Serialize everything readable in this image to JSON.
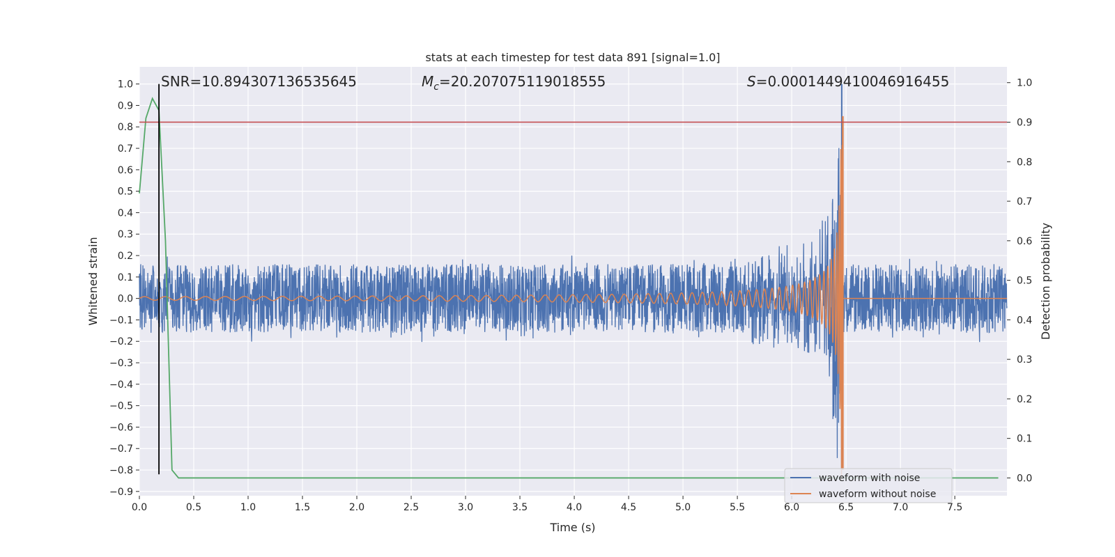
{
  "chart_data": {
    "type": "line",
    "title": "stats at each timestep for test data 891 [signal=1.0]",
    "xlabel": "Time (s)",
    "ylabel": "Whitened strain",
    "y2label": "Detection probability",
    "xlim": [
      0,
      7.98
    ],
    "ylim": [
      -0.92,
      1.08
    ],
    "y2lim": [
      -0.045,
      1.04
    ],
    "x_ticks": [
      0.0,
      0.5,
      1.0,
      1.5,
      2.0,
      2.5,
      3.0,
      3.5,
      4.0,
      4.5,
      5.0,
      5.5,
      6.0,
      6.5,
      7.0,
      7.5
    ],
    "x_tick_labels": [
      "0.0",
      "0.5",
      "1.0",
      "1.5",
      "2.0",
      "2.5",
      "3.0",
      "3.5",
      "4.0",
      "4.5",
      "5.0",
      "5.5",
      "6.0",
      "6.5",
      "7.0",
      "7.5"
    ],
    "y_ticks": [
      1.0,
      0.9,
      0.8,
      0.7,
      0.6,
      0.5,
      0.4,
      0.3,
      0.2,
      0.1,
      0.0,
      -0.1,
      -0.2,
      -0.3,
      -0.4,
      -0.5,
      -0.6,
      -0.7,
      -0.8,
      -0.9
    ],
    "y_tick_labels": [
      "1.0",
      "0.9",
      "0.8",
      "0.7",
      "0.6",
      "0.5",
      "0.4",
      "0.3",
      "0.2",
      "0.1",
      "0.0",
      "−0.1",
      "−0.2",
      "−0.3",
      "−0.4",
      "−0.5",
      "−0.6",
      "−0.7",
      "−0.8",
      "−0.9"
    ],
    "y2_ticks": [
      1.0,
      0.9,
      0.8,
      0.7,
      0.6,
      0.5,
      0.4,
      0.3,
      0.2,
      0.1,
      0.0
    ],
    "y2_tick_labels": [
      "1.0",
      "0.9",
      "0.8",
      "0.7",
      "0.6",
      "0.5",
      "0.4",
      "0.3",
      "0.2",
      "0.1",
      "0.0"
    ],
    "grid": true,
    "legend": {
      "position": "lower-right",
      "entries": [
        "waveform with noise",
        "waveform without noise"
      ]
    },
    "annotations": {
      "snr": "SNR=10.894307136535645",
      "mc_symbol": "M",
      "mc_sub": "c",
      "mc_value": "=20.207075119018555",
      "s_symbol": "S",
      "s_value": "=0.00014494100469164​55"
    },
    "series": [
      {
        "name": "waveform with noise",
        "color": "#4c72b0",
        "description_values": {
          "noise_amplitude": 0.2,
          "peak": 1.0,
          "trough": -0.8,
          "merger_time": 6.46
        }
      },
      {
        "name": "waveform without noise",
        "color": "#dd8452",
        "description_values": {
          "start_amplitude": 0.006,
          "peak": 0.85,
          "trough": -0.8,
          "merger_time": 6.47
        }
      },
      {
        "name": "detection probability",
        "color": "#55a868",
        "axis": "right",
        "x": [
          0.0,
          0.06,
          0.12,
          0.18,
          0.24,
          0.3,
          0.36,
          0.45,
          7.9
        ],
        "y": [
          0.72,
          0.91,
          0.96,
          0.93,
          0.6,
          0.02,
          0.0,
          0.0,
          0.0
        ]
      }
    ],
    "hline": {
      "axis": "right",
      "y": 0.9,
      "color": "#c44e52"
    },
    "vline": {
      "x": 0.18,
      "y_from": -0.82,
      "y_to": 1.0,
      "color": "#000000"
    }
  }
}
